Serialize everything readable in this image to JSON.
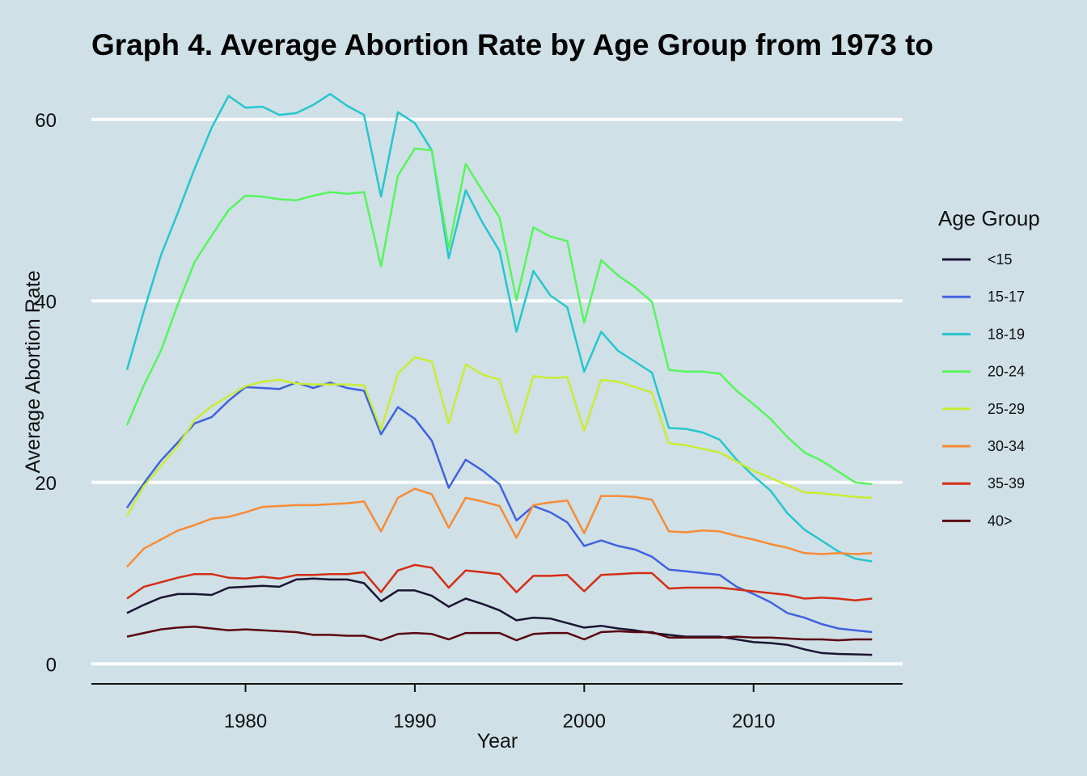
{
  "chart_data": {
    "type": "line",
    "title": "Graph 4. Average Abortion Rate by Age Group from 1973 to",
    "xlabel": "Year",
    "ylabel": "Average Abortion Rate",
    "xlim": [
      1970.9,
      2018.8
    ],
    "ylim": [
      -2.2,
      64.7
    ],
    "x_ticks": [
      1980,
      1990,
      2000,
      2010
    ],
    "y_ticks": [
      0,
      20,
      40,
      60
    ],
    "grid": "horizontal major lines only",
    "legend": {
      "title": "Age Group",
      "position": "right"
    },
    "background": "#cfe0e7",
    "x": [
      1973,
      1974,
      1975,
      1976,
      1977,
      1978,
      1979,
      1980,
      1981,
      1982,
      1983,
      1984,
      1985,
      1986,
      1987,
      1988,
      1989,
      1990,
      1991,
      1992,
      1993,
      1994,
      1995,
      1996,
      1997,
      1998,
      1999,
      2000,
      2001,
      2002,
      2003,
      2004,
      2005,
      2006,
      2007,
      2008,
      2009,
      2010,
      2011,
      2012,
      2013,
      2014,
      2015,
      2016,
      2017
    ],
    "series": [
      {
        "name": "<15",
        "color": "#1a1433",
        "values": [
          5.6,
          6.5,
          7.3,
          7.7,
          7.7,
          7.6,
          8.4,
          8.5,
          8.6,
          8.5,
          9.3,
          9.4,
          9.3,
          9.3,
          8.9,
          6.9,
          8.1,
          8.1,
          7.5,
          6.3,
          7.2,
          6.6,
          5.9,
          4.8,
          5.1,
          5.0,
          4.5,
          4.0,
          4.2,
          3.9,
          3.7,
          3.4,
          3.2,
          3.0,
          3.0,
          3.0,
          2.7,
          2.4,
          2.3,
          2.1,
          1.6,
          1.2,
          1.1,
          1.05,
          1.0
        ]
      },
      {
        "name": "15-17",
        "color": "#4162e0",
        "values": [
          17.2,
          19.9,
          22.4,
          24.4,
          26.5,
          27.2,
          29.0,
          30.5,
          30.4,
          30.3,
          31.0,
          30.4,
          31.0,
          30.4,
          30.1,
          25.3,
          28.3,
          27.0,
          24.6,
          19.4,
          22.5,
          21.3,
          19.8,
          15.8,
          17.4,
          16.7,
          15.6,
          13.0,
          13.6,
          13.0,
          12.6,
          11.8,
          10.4,
          10.2,
          10.0,
          9.8,
          8.5,
          7.7,
          6.8,
          5.6,
          5.1,
          4.4,
          3.9,
          3.7,
          3.5
        ]
      },
      {
        "name": "18-19",
        "color": "#27c6cc",
        "values": [
          32.4,
          38.9,
          45.0,
          49.7,
          54.6,
          59.1,
          62.6,
          61.3,
          61.4,
          60.5,
          60.7,
          61.6,
          62.8,
          61.5,
          60.5,
          51.5,
          60.8,
          59.6,
          56.6,
          44.7,
          52.2,
          48.6,
          45.5,
          36.6,
          43.3,
          40.6,
          39.3,
          32.2,
          36.6,
          34.5,
          33.3,
          32.1,
          26.0,
          25.9,
          25.5,
          24.7,
          22.5,
          20.7,
          19.1,
          16.6,
          14.8,
          13.6,
          12.4,
          11.6,
          11.3
        ]
      },
      {
        "name": "20-24",
        "color": "#57f55c",
        "values": [
          26.3,
          30.7,
          34.5,
          39.6,
          44.3,
          47.2,
          50.0,
          51.6,
          51.5,
          51.2,
          51.1,
          51.6,
          52.0,
          51.8,
          52.0,
          43.8,
          53.8,
          56.8,
          56.6,
          45.8,
          55.1,
          52.1,
          49.2,
          40.1,
          48.1,
          47.1,
          46.6,
          37.6,
          44.5,
          42.8,
          41.5,
          39.9,
          32.4,
          32.2,
          32.2,
          32.0,
          30.1,
          28.6,
          27.0,
          25.0,
          23.3,
          22.4,
          21.2,
          20.0,
          19.8
        ]
      },
      {
        "name": "25-29",
        "color": "#c9ec35",
        "values": [
          16.3,
          19.6,
          21.8,
          24.0,
          26.9,
          28.4,
          29.5,
          30.6,
          31.1,
          31.3,
          30.9,
          30.8,
          30.8,
          30.8,
          30.7,
          25.8,
          32.0,
          33.8,
          33.3,
          26.5,
          33.0,
          31.9,
          31.3,
          25.4,
          31.7,
          31.5,
          31.6,
          25.7,
          31.3,
          31.1,
          30.5,
          29.9,
          24.3,
          24.1,
          23.7,
          23.3,
          22.3,
          21.3,
          20.5,
          19.7,
          18.9,
          18.8,
          18.6,
          18.4,
          18.3
        ]
      },
      {
        "name": "30-34",
        "color": "#f78b36",
        "values": [
          10.7,
          12.7,
          13.7,
          14.7,
          15.3,
          16.0,
          16.2,
          16.7,
          17.3,
          17.4,
          17.5,
          17.5,
          17.6,
          17.7,
          17.9,
          14.6,
          18.3,
          19.3,
          18.7,
          15.0,
          18.3,
          17.9,
          17.4,
          13.9,
          17.5,
          17.8,
          18.0,
          14.4,
          18.5,
          18.5,
          18.4,
          18.1,
          14.6,
          14.5,
          14.7,
          14.6,
          14.1,
          13.7,
          13.2,
          12.8,
          12.2,
          12.1,
          12.2,
          12.1,
          12.2
        ]
      },
      {
        "name": "35-39",
        "color": "#d42d14",
        "values": [
          7.2,
          8.5,
          9.0,
          9.5,
          9.9,
          9.9,
          9.5,
          9.4,
          9.6,
          9.4,
          9.8,
          9.8,
          9.9,
          9.9,
          10.1,
          7.9,
          10.3,
          10.9,
          10.6,
          8.4,
          10.3,
          10.1,
          9.9,
          7.9,
          9.7,
          9.7,
          9.8,
          8.0,
          9.8,
          9.9,
          10.0,
          10.0,
          8.3,
          8.4,
          8.4,
          8.4,
          8.2,
          8.0,
          7.8,
          7.6,
          7.2,
          7.3,
          7.2,
          7.0,
          7.2
        ]
      },
      {
        "name": "40>",
        "color": "#5a0710",
        "values": [
          3.0,
          3.4,
          3.8,
          4.0,
          4.1,
          3.9,
          3.7,
          3.8,
          3.7,
          3.6,
          3.5,
          3.2,
          3.2,
          3.1,
          3.1,
          2.6,
          3.3,
          3.4,
          3.3,
          2.7,
          3.4,
          3.4,
          3.4,
          2.6,
          3.3,
          3.4,
          3.4,
          2.7,
          3.5,
          3.6,
          3.5,
          3.5,
          2.9,
          2.9,
          2.9,
          2.9,
          3.0,
          2.9,
          2.9,
          2.8,
          2.7,
          2.7,
          2.6,
          2.7,
          2.7
        ]
      }
    ]
  }
}
